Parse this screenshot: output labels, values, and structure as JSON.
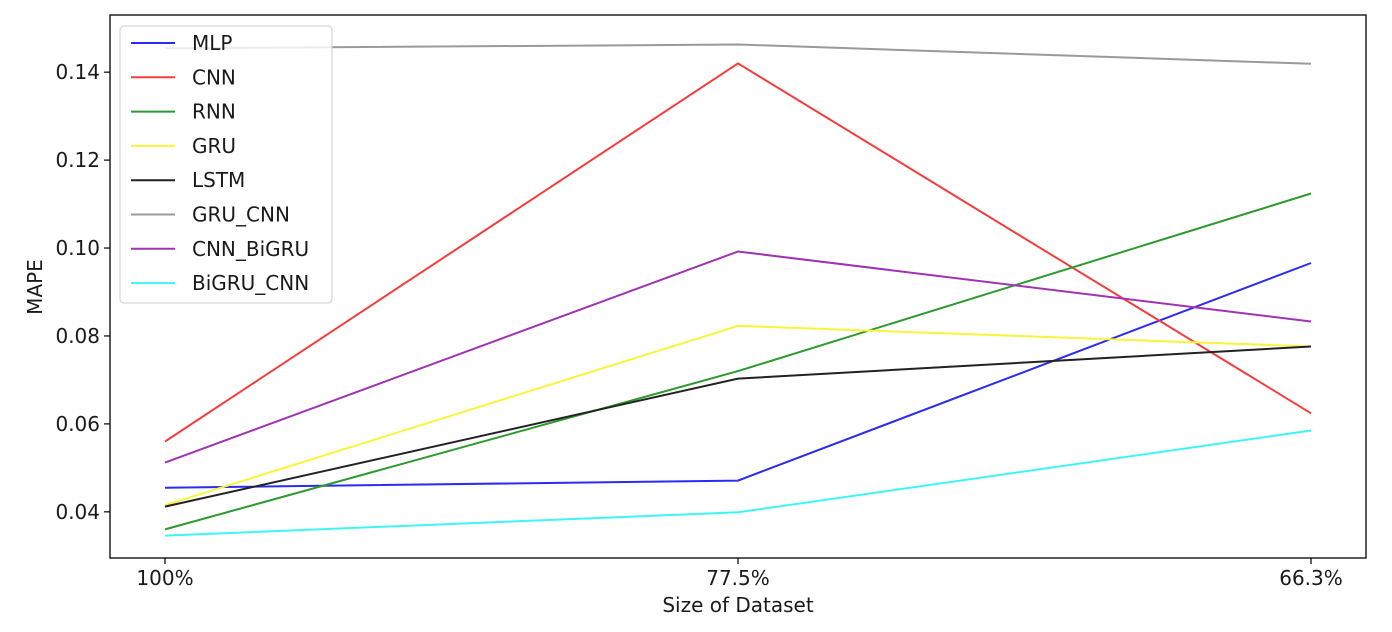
{
  "chart_data": {
    "type": "line",
    "xlabel": "Size of Dataset",
    "ylabel": "MAPE",
    "categories": [
      "100%",
      "77.5%",
      "66.3%"
    ],
    "ylim": [
      0.0295,
      0.153
    ],
    "yticks": [
      0.04,
      0.06,
      0.08,
      0.1,
      0.12,
      0.14
    ],
    "ytick_labels": [
      "0.04",
      "0.06",
      "0.08",
      "0.10",
      "0.12",
      "0.14"
    ],
    "grid": false,
    "legend_position": "top-left",
    "series": [
      {
        "name": "MLP",
        "color": "#2b2bf5",
        "values": [
          0.0455,
          0.0471,
          0.0966
        ]
      },
      {
        "name": "CNN",
        "color": "#f53d3d",
        "values": [
          0.056,
          0.142,
          0.0624
        ]
      },
      {
        "name": "RNN",
        "color": "#2e9a2e",
        "values": [
          0.036,
          0.072,
          0.1124
        ]
      },
      {
        "name": "GRU",
        "color": "#f8f53a",
        "values": [
          0.0415,
          0.0823,
          0.0776
        ]
      },
      {
        "name": "LSTM",
        "color": "#222222",
        "values": [
          0.0412,
          0.0703,
          0.0776
        ]
      },
      {
        "name": "GRU_CNN",
        "color": "#9a9a9a",
        "values": [
          0.1454,
          0.1463,
          0.1419
        ]
      },
      {
        "name": "CNN_BiGRU",
        "color": "#a033b3",
        "values": [
          0.0512,
          0.0992,
          0.0833
        ]
      },
      {
        "name": "BiGRU_CNN",
        "color": "#3ef5f5",
        "values": [
          0.0346,
          0.0399,
          0.0585
        ]
      }
    ]
  }
}
